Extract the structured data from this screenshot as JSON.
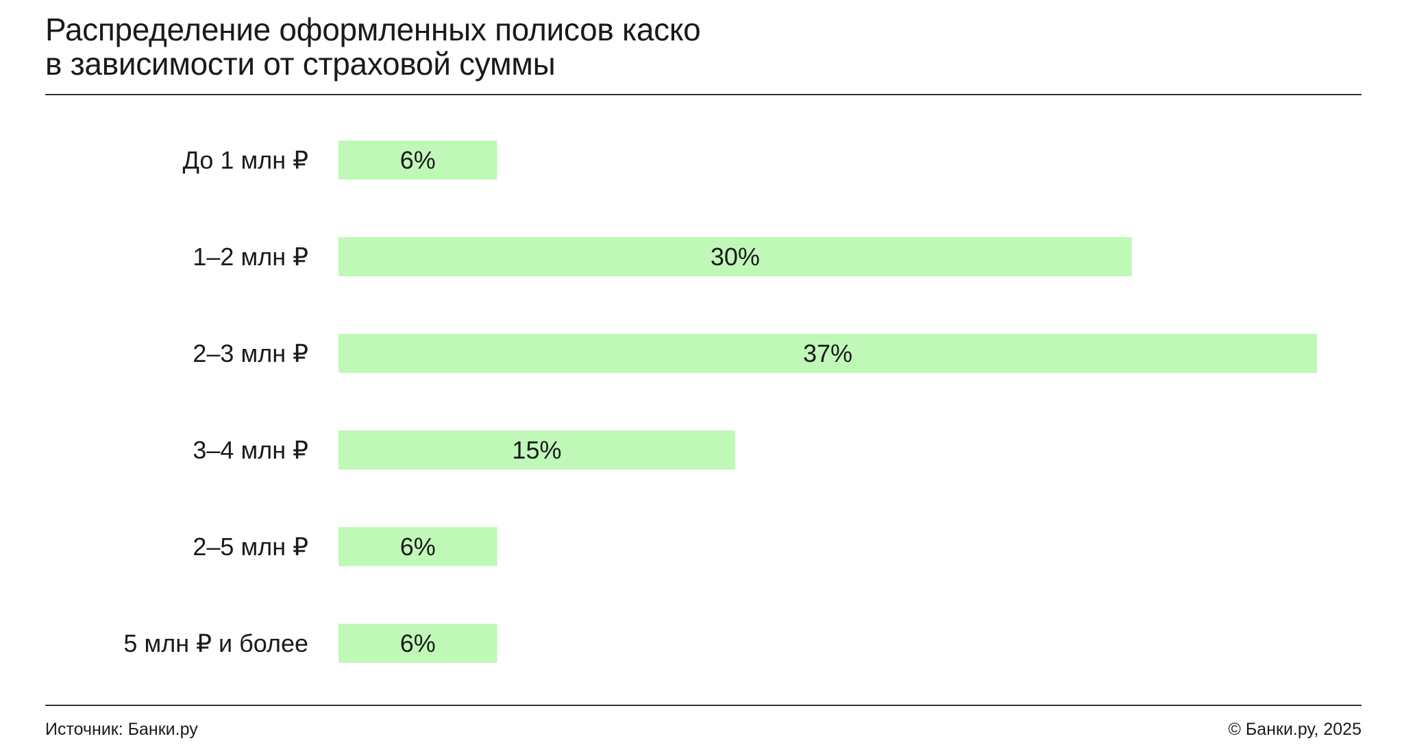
{
  "chart_data": {
    "type": "bar",
    "orientation": "horizontal",
    "title_lines": [
      "Распределение оформленных полисов каско",
      "в зависимости от страховой суммы"
    ],
    "categories": [
      "До 1 млн ₽",
      "1–2 млн ₽",
      "2–3 млн ₽",
      "3–4 млн ₽",
      "2–5 млн ₽",
      "5 млн ₽ и более"
    ],
    "values": [
      6,
      30,
      37,
      15,
      6,
      6
    ],
    "value_labels": [
      "6%",
      "30%",
      "37%",
      "15%",
      "6%",
      "6%"
    ],
    "unit": "%",
    "xlim": [
      0,
      37
    ],
    "grid": false,
    "legend": "none",
    "bar_color": "#c0f8b8"
  },
  "footer": {
    "source": "Источник: Банки.ру",
    "copyright": "© Банки.ру, 2025"
  },
  "colors": {
    "text": "#1a1a1a",
    "rule": "#333333",
    "bar": "#c0f8b8"
  }
}
